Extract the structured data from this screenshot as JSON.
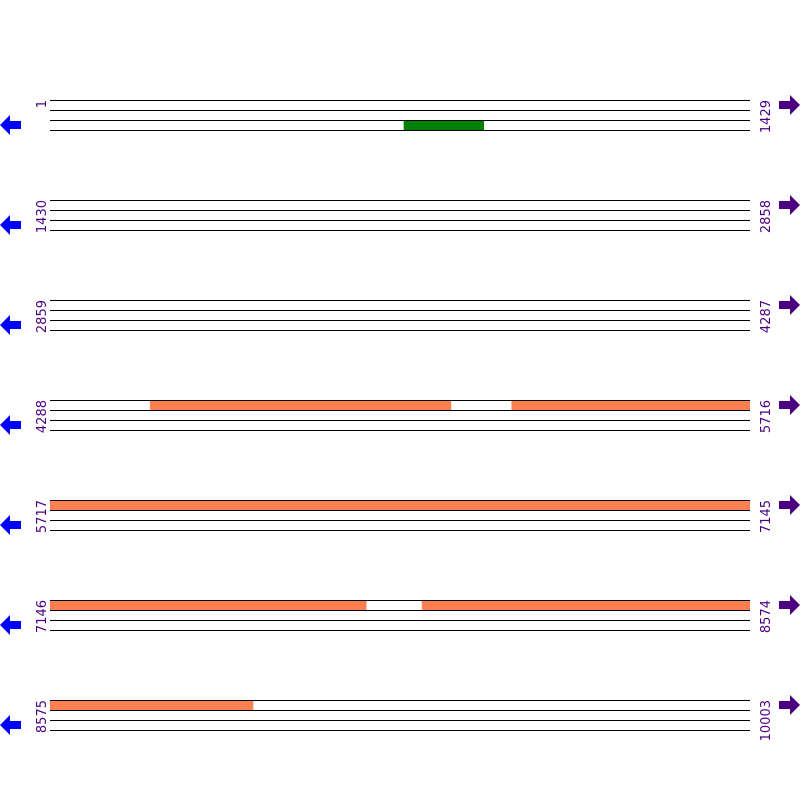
{
  "rows": [
    {
      "start": 1,
      "end": 1429
    },
    {
      "start": 1430,
      "end": 2858
    },
    {
      "start": 2859,
      "end": 4287
    },
    {
      "start": 4288,
      "end": 5716
    },
    {
      "start": 5717,
      "end": 7145
    },
    {
      "start": 7146,
      "end": 8574
    },
    {
      "start": 8575,
      "end": 10003
    }
  ],
  "features": [
    {
      "start": 723,
      "end": 886,
      "track": 2,
      "color": "#008000"
    },
    {
      "start": 4492,
      "end": 5106,
      "track": 0,
      "color": "#ff7f50"
    },
    {
      "start": 5230,
      "end": 7791,
      "track": 0,
      "color": "#ff7f50"
    },
    {
      "start": 7905,
      "end": 8989,
      "track": 0,
      "color": "#ff7f50"
    }
  ],
  "colors": {
    "label": "#4b0082",
    "left_arrow": "#0000ff",
    "right_arrow": "#4b0082",
    "line": "#000000"
  },
  "icons": {
    "left": "arrow-left-icon",
    "right": "arrow-right-icon"
  }
}
